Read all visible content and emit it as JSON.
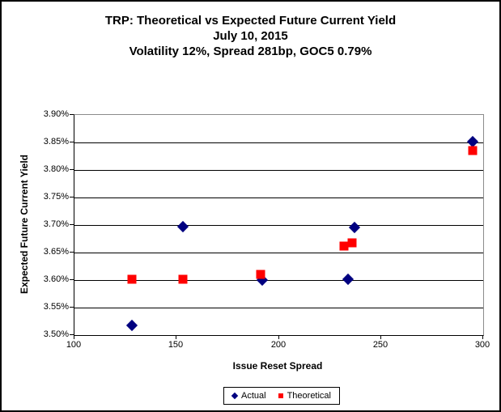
{
  "title": {
    "line1": "TRP: Theoretical vs Expected Future Current Yield",
    "line2": "July 10, 2015",
    "line3": "Volatility 12%, Spread 281bp, GOC5 0.79%"
  },
  "chart_data": {
    "type": "scatter",
    "title": "TRP: Theoretical vs Expected Future Current Yield",
    "subtitle1": "July 10, 2015",
    "subtitle2": "Volatility 12%, Spread 281bp, GOC5 0.79%",
    "xlabel": "Issue Reset Spread",
    "ylabel": "Expected Future Current Yield",
    "xlim": [
      100,
      300
    ],
    "ylim": [
      3.5,
      3.9
    ],
    "x_tick_values": [
      100,
      150,
      200,
      250,
      300
    ],
    "x_tick_labels": [
      "100",
      "150",
      "200",
      "250",
      "300"
    ],
    "y_tick_values": [
      3.5,
      3.55,
      3.6,
      3.65,
      3.7,
      3.75,
      3.8,
      3.85,
      3.9
    ],
    "y_tick_labels": [
      "3.50%",
      "3.55%",
      "3.60%",
      "3.65%",
      "3.70%",
      "3.75%",
      "3.80%",
      "3.85%",
      "3.90%"
    ],
    "grid": "horizontal",
    "gridline_color": "#000000",
    "plot_border_color": "#8c8c8c",
    "legend_position": "bottom-center",
    "series": [
      {
        "name": "Actual",
        "marker": "diamond",
        "color": "#000080",
        "points": [
          [
            128,
            3.518
          ],
          [
            153,
            3.697
          ],
          [
            192,
            3.6
          ],
          [
            234,
            3.602
          ],
          [
            237,
            3.696
          ],
          [
            295,
            3.851
          ]
        ]
      },
      {
        "name": "Theoretical",
        "marker": "square",
        "color": "#FF0000",
        "points": [
          [
            128,
            3.601
          ],
          [
            153,
            3.601
          ],
          [
            191,
            3.61
          ],
          [
            232,
            3.662
          ],
          [
            236,
            3.667
          ],
          [
            295,
            3.836
          ]
        ]
      }
    ]
  }
}
